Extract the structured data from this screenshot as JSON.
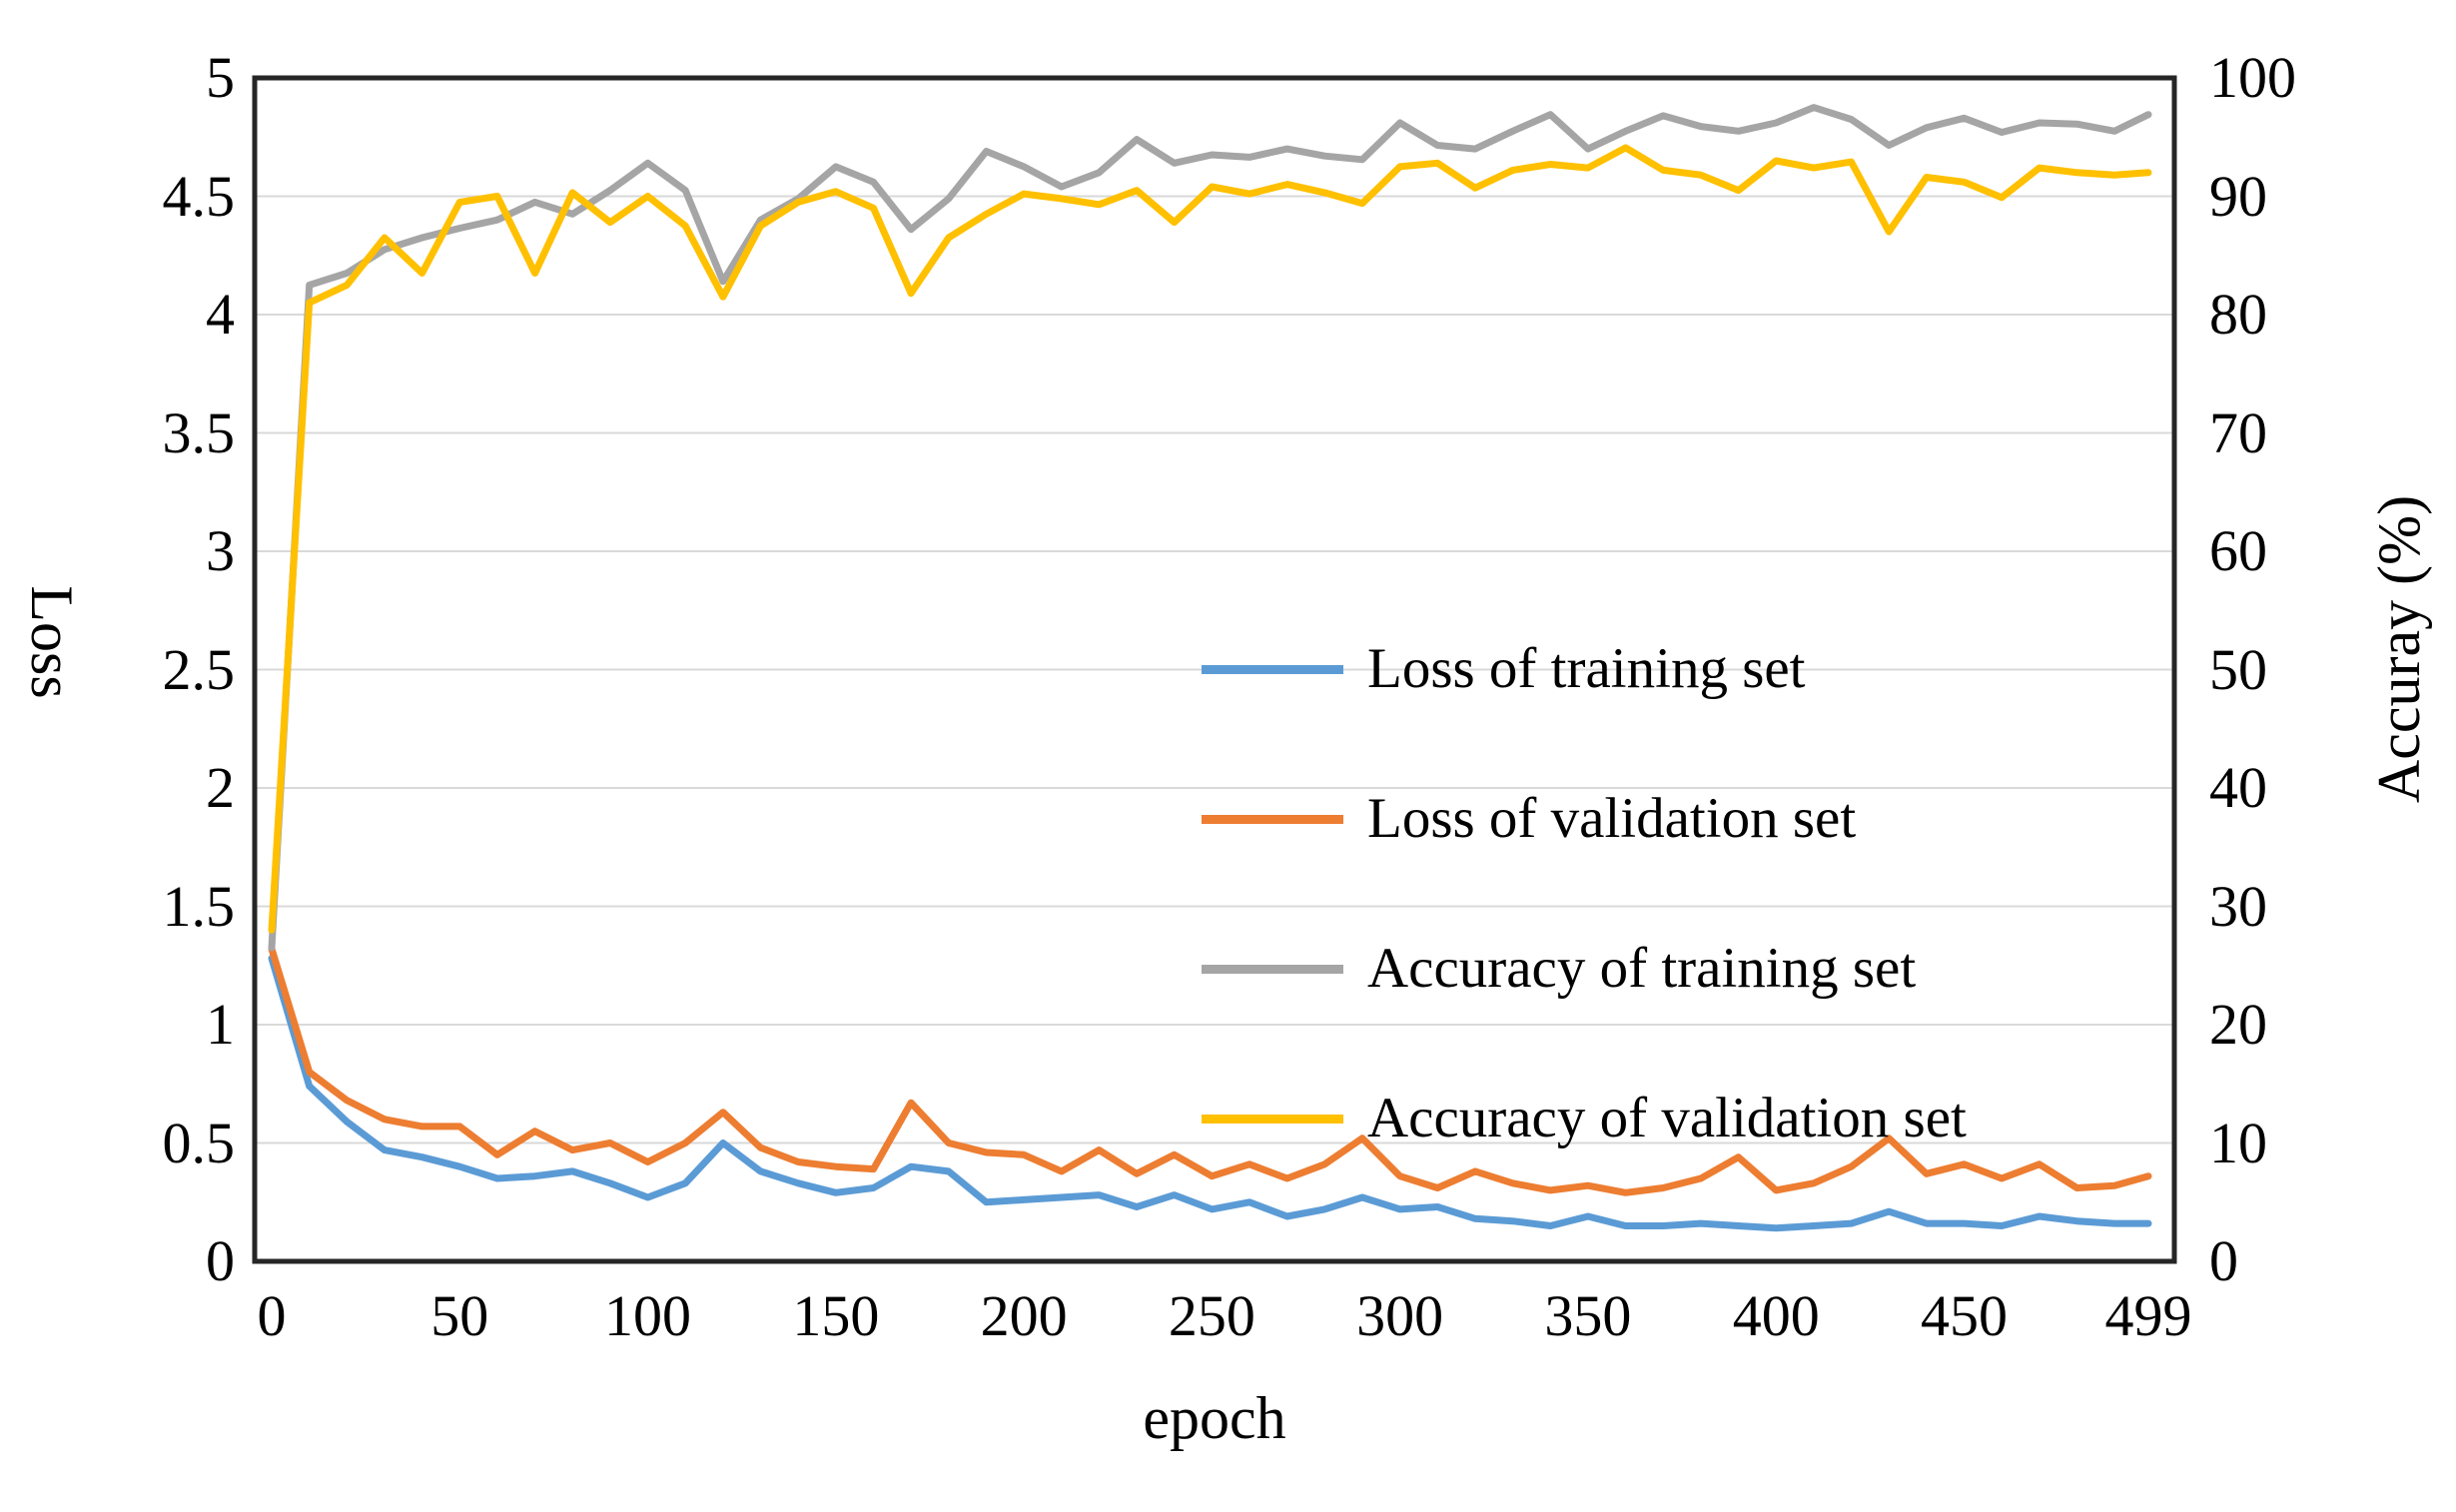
{
  "chart_data": {
    "type": "line",
    "title": "",
    "xlabel": "epoch",
    "ylabel_left": "Loss",
    "ylabel_right": "Accuray (%)",
    "grid": "horizontal",
    "legend_position": "inside-center-right",
    "axis_color": "#262626",
    "gridline_color": "#D9D9D9",
    "x_axis": {
      "min": 0,
      "max": 499,
      "ticks": [
        0,
        50,
        100,
        150,
        200,
        250,
        300,
        350,
        400,
        450,
        499
      ]
    },
    "left_axis": {
      "label": "Loss",
      "min": 0,
      "max": 5,
      "step": 0.5,
      "ticks": [
        5,
        4.5,
        4,
        3.5,
        3,
        2.5,
        2,
        1.5,
        1,
        0.5,
        0
      ]
    },
    "right_axis": {
      "label": "Accuray (%)",
      "min": 0,
      "max": 100,
      "step": 10,
      "ticks": [
        100,
        90,
        80,
        70,
        60,
        50,
        40,
        30,
        20,
        10,
        0
      ]
    },
    "x": [
      0,
      10,
      20,
      30,
      40,
      50,
      60,
      70,
      80,
      90,
      100,
      110,
      120,
      130,
      140,
      150,
      160,
      170,
      180,
      190,
      200,
      210,
      220,
      230,
      240,
      250,
      260,
      270,
      280,
      290,
      300,
      310,
      320,
      330,
      340,
      350,
      360,
      370,
      380,
      390,
      400,
      410,
      420,
      430,
      440,
      450,
      460,
      470,
      480,
      490,
      499
    ],
    "series": [
      {
        "name": "Loss of training set",
        "color": "#5B9BD5",
        "axis": "left",
        "values": [
          1.28,
          0.74,
          0.59,
          0.47,
          0.44,
          0.4,
          0.35,
          0.36,
          0.38,
          0.33,
          0.27,
          0.33,
          0.5,
          0.38,
          0.33,
          0.29,
          0.31,
          0.4,
          0.38,
          0.25,
          0.26,
          0.27,
          0.28,
          0.23,
          0.28,
          0.22,
          0.25,
          0.19,
          0.22,
          0.27,
          0.22,
          0.23,
          0.18,
          0.17,
          0.15,
          0.19,
          0.15,
          0.15,
          0.16,
          0.15,
          0.14,
          0.15,
          0.16,
          0.21,
          0.16,
          0.16,
          0.15,
          0.19,
          0.17,
          0.16,
          0.16
        ]
      },
      {
        "name": "Loss of validation set",
        "color": "#ED7D31",
        "axis": "left",
        "values": [
          1.32,
          0.8,
          0.68,
          0.6,
          0.57,
          0.57,
          0.45,
          0.55,
          0.47,
          0.5,
          0.42,
          0.5,
          0.63,
          0.48,
          0.42,
          0.4,
          0.39,
          0.67,
          0.5,
          0.46,
          0.45,
          0.38,
          0.47,
          0.37,
          0.45,
          0.36,
          0.41,
          0.35,
          0.41,
          0.52,
          0.36,
          0.31,
          0.38,
          0.33,
          0.3,
          0.32,
          0.29,
          0.31,
          0.35,
          0.44,
          0.3,
          0.33,
          0.4,
          0.52,
          0.37,
          0.41,
          0.35,
          0.41,
          0.31,
          0.32,
          0.36
        ]
      },
      {
        "name": "Accuracy of training set",
        "color": "#A5A5A5",
        "axis": "right",
        "values": [
          26.5,
          82.5,
          83.5,
          85.5,
          86.5,
          87.3,
          88,
          89.5,
          88.5,
          90.5,
          92.8,
          90.5,
          82.8,
          88,
          89.8,
          92.5,
          91.2,
          87.2,
          89.8,
          93.8,
          92.5,
          90.8,
          92,
          94.8,
          92.8,
          93.5,
          93.3,
          94,
          93.4,
          93.1,
          96.2,
          94.3,
          94,
          95.5,
          96.9,
          94,
          95.5,
          96.8,
          95.9,
          95.5,
          96.2,
          97.5,
          96.5,
          94.3,
          95.8,
          96.6,
          95.4,
          96.2,
          96.1,
          95.5,
          96.9
        ]
      },
      {
        "name": "Accuracy of validation set",
        "color": "#FFC000",
        "axis": "right",
        "values": [
          28,
          81,
          82.5,
          86.5,
          83.5,
          89.5,
          90,
          83.5,
          90.3,
          87.8,
          90,
          87.5,
          81.5,
          87.5,
          89.5,
          90.4,
          89,
          81.8,
          86.5,
          88.5,
          90.2,
          89.8,
          89.3,
          90.5,
          87.8,
          90.8,
          90.2,
          91,
          90.3,
          89.4,
          92.5,
          92.8,
          90.7,
          92.2,
          92.7,
          92.4,
          94.1,
          92.2,
          91.8,
          90.5,
          93,
          92.4,
          92.9,
          87,
          91.6,
          91.2,
          89.9,
          92.4,
          92,
          91.8,
          92
        ]
      }
    ]
  }
}
